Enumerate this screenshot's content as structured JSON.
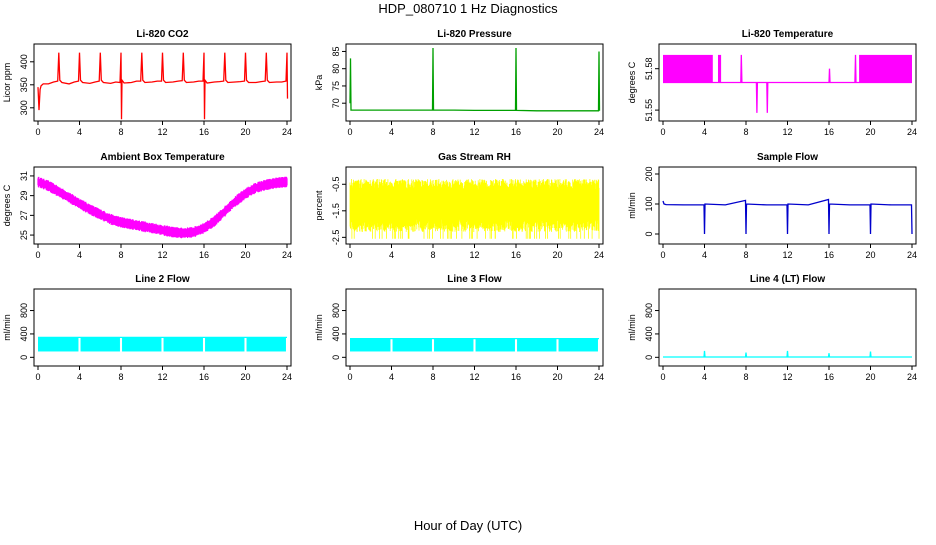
{
  "page": {
    "title": "HDP_080710  1 Hz Diagnostics",
    "x_caption": "Hour of Day (UTC)"
  },
  "chart_data": [
    {
      "type": "line",
      "title": "Li-820 CO2",
      "ylabel": "Licor ppm",
      "color": "#ff0000",
      "xlim": [
        0,
        24
      ],
      "ylim": [
        280,
        430
      ],
      "xticks": [
        0,
        4,
        8,
        12,
        16,
        20,
        24
      ],
      "yticks": [
        300,
        350,
        400
      ],
      "grid": false,
      "series": [
        {
          "x": [
            0.0,
            0.1,
            0.2,
            0.3,
            0.5,
            1.0,
            1.5,
            1.9,
            2.0,
            2.1,
            2.3,
            3.0,
            3.5,
            3.9,
            4.0,
            4.1,
            4.3,
            5.0,
            5.5,
            5.9,
            6.0,
            6.1,
            6.3,
            7.0,
            7.5,
            7.9,
            8.0,
            8.05,
            8.1,
            8.3,
            9.0,
            9.5,
            9.9,
            10.0,
            10.1,
            10.3,
            11.0,
            11.5,
            11.9,
            12.0,
            12.1,
            12.3,
            13.0,
            13.5,
            13.9,
            14.0,
            14.1,
            14.3,
            15.0,
            15.5,
            15.9,
            16.0,
            16.05,
            16.1,
            16.3,
            17.0,
            17.5,
            17.9,
            18.0,
            18.1,
            18.3,
            19.0,
            19.5,
            19.9,
            20.0,
            20.1,
            20.3,
            21.0,
            21.5,
            21.9,
            22.0,
            22.1,
            22.3,
            23.0,
            23.5,
            23.9,
            24.0,
            24.05
          ],
          "y": [
            345,
            295,
            340,
            348,
            352,
            352,
            356,
            358,
            420,
            360,
            355,
            352,
            356,
            358,
            420,
            360,
            355,
            353,
            356,
            358,
            420,
            360,
            355,
            353,
            356,
            355,
            420,
            275,
            360,
            354,
            355,
            358,
            358,
            420,
            360,
            355,
            356,
            358,
            358,
            420,
            360,
            355,
            356,
            358,
            359,
            420,
            360,
            355,
            356,
            358,
            358,
            420,
            275,
            360,
            354,
            356,
            357,
            358,
            420,
            360,
            355,
            356,
            357,
            358,
            420,
            360,
            355,
            355,
            357,
            358,
            420,
            360,
            355,
            356,
            356,
            358,
            420,
            320
          ]
        }
      ]
    },
    {
      "type": "line",
      "title": "Li-820 Pressure",
      "ylabel": "kPa",
      "color": "#00a000",
      "xlim": [
        0,
        24
      ],
      "ylim": [
        66,
        86
      ],
      "xticks": [
        0,
        4,
        8,
        12,
        16,
        20,
        24
      ],
      "yticks": [
        70,
        75,
        80,
        85
      ],
      "grid": false,
      "series": [
        {
          "x": [
            0.0,
            0.05,
            0.1,
            0.2,
            2,
            4,
            6,
            7.95,
            8.0,
            8.05,
            10,
            12,
            14,
            15.95,
            16.0,
            16.05,
            18,
            20,
            22,
            23.95,
            24.0,
            24.05
          ],
          "y": [
            70,
            83,
            68,
            68,
            68,
            68,
            68,
            68,
            86,
            68,
            68,
            67.9,
            67.9,
            67.9,
            86,
            67.9,
            67.8,
            67.8,
            67.8,
            67.8,
            85,
            67.8
          ]
        }
      ]
    },
    {
      "type": "line",
      "title": "Li-820 Temperature",
      "ylabel": "degrees C",
      "color": "#ff00ff",
      "xlim": [
        0,
        24
      ],
      "ylim": [
        51.545,
        51.595
      ],
      "xticks": [
        0,
        4,
        8,
        12,
        16,
        20,
        24
      ],
      "yticks": [
        51.55,
        51.58
      ],
      "ytick_labels": [
        "51.55",
        "51.58"
      ],
      "grid": false,
      "band_ranges": [
        [
          0,
          4.8
        ],
        [
          5.3,
          5.6
        ],
        [
          18.9,
          24
        ]
      ],
      "band_level": [
        51.57,
        51.59
      ],
      "series": [
        {
          "x": [
            0.0,
            4.8,
            5.0,
            5.3,
            5.6,
            7.5,
            7.55,
            7.6,
            9.0,
            9.05,
            9.1,
            10.0,
            10.05,
            10.1,
            16.0,
            16.05,
            16.1,
            18.5,
            18.55,
            18.6,
            24.0
          ],
          "y": [
            51.57,
            51.57,
            51.57,
            51.57,
            51.57,
            51.57,
            51.59,
            51.57,
            51.57,
            51.548,
            51.57,
            51.57,
            51.548,
            51.57,
            51.57,
            51.58,
            51.57,
            51.57,
            51.59,
            51.57,
            51.57
          ]
        }
      ]
    },
    {
      "type": "line",
      "title": "Ambient Box Temperature",
      "ylabel": "degrees C",
      "color": "#ff00ff",
      "xlim": [
        0,
        24
      ],
      "ylim": [
        24.5,
        31.5
      ],
      "xticks": [
        0,
        4,
        8,
        12,
        16,
        20,
        24
      ],
      "yticks": [
        25,
        27,
        29,
        31
      ],
      "grid": false,
      "band_half_width": 0.55,
      "series": [
        {
          "x": [
            0,
            1,
            2,
            3,
            4,
            5,
            6,
            7,
            8,
            9,
            10,
            11,
            12,
            13,
            14,
            15,
            16,
            17,
            18,
            19,
            20,
            21,
            22,
            23,
            24
          ],
          "y": [
            30.4,
            30.0,
            29.4,
            28.8,
            28.2,
            27.6,
            27.1,
            26.6,
            26.3,
            26.1,
            25.9,
            25.7,
            25.5,
            25.3,
            25.2,
            25.3,
            25.7,
            26.4,
            27.4,
            28.4,
            29.2,
            29.8,
            30.1,
            30.3,
            30.4
          ]
        }
      ]
    },
    {
      "type": "line",
      "title": "Gas Stream RH",
      "ylabel": "percent",
      "color": "#ffff00",
      "xlim": [
        0,
        24
      ],
      "ylim": [
        -2.6,
        0.0
      ],
      "xticks": [
        0,
        4,
        8,
        12,
        16,
        20,
        24
      ],
      "yticks": [
        -2.5,
        -1.5,
        -0.5
      ],
      "grid": false,
      "noise_range": [
        -2.3,
        -0.3
      ],
      "series": [
        {
          "x": [
            0,
            24
          ],
          "y": [
            -1.3,
            -1.1
          ]
        }
      ]
    },
    {
      "type": "line",
      "title": "Sample Flow",
      "ylabel": "ml/min",
      "color": "#0000cc",
      "xlim": [
        0,
        24
      ],
      "ylim": [
        -20,
        210
      ],
      "xticks": [
        0,
        4,
        8,
        12,
        16,
        20,
        24
      ],
      "yticks": [
        0,
        100,
        200
      ],
      "grid": false,
      "series": [
        {
          "x": [
            0.0,
            0.1,
            0.3,
            2,
            3.95,
            4.0,
            4.05,
            6,
            7.95,
            8.0,
            8.05,
            10,
            11.95,
            12.0,
            12.05,
            14,
            15.95,
            16.0,
            16.05,
            18,
            19.95,
            20.0,
            20.05,
            22,
            23.95,
            24.0
          ],
          "y": [
            110,
            100,
            98,
            97,
            97,
            0,
            100,
            97,
            112,
            0,
            100,
            97,
            97,
            0,
            100,
            97,
            115,
            0,
            100,
            97,
            97,
            0,
            100,
            97,
            97,
            0
          ]
        }
      ]
    },
    {
      "type": "area",
      "title": "Line 2 Flow",
      "ylabel": "ml/min",
      "color": "#00ffff",
      "xlim": [
        0,
        24
      ],
      "ylim": [
        -80,
        1100
      ],
      "xticks": [
        0,
        4,
        8,
        12,
        16,
        20,
        24
      ],
      "yticks": [
        0,
        400,
        800
      ],
      "grid": false,
      "band_ranges": [
        [
          0,
          3.9
        ],
        [
          4.1,
          7.9
        ],
        [
          8.1,
          11.9
        ],
        [
          12.1,
          15.9
        ],
        [
          16.1,
          19.9
        ],
        [
          20.1,
          23.9
        ]
      ],
      "band_level": [
        100,
        340
      ],
      "series": [
        {
          "x": [
            0,
            24
          ],
          "y": [
            340,
            340
          ]
        }
      ]
    },
    {
      "type": "area",
      "title": "Line 3 Flow",
      "ylabel": "ml/min",
      "color": "#00ffff",
      "xlim": [
        0,
        24
      ],
      "ylim": [
        -80,
        1100
      ],
      "xticks": [
        0,
        4,
        8,
        12,
        16,
        20,
        24
      ],
      "yticks": [
        0,
        400,
        800
      ],
      "grid": false,
      "band_ranges": [
        [
          0,
          3.9
        ],
        [
          4.1,
          7.9
        ],
        [
          8.1,
          11.9
        ],
        [
          12.1,
          15.9
        ],
        [
          16.1,
          19.9
        ],
        [
          20.1,
          23.9
        ]
      ],
      "band_level": [
        100,
        320
      ],
      "series": [
        {
          "x": [
            0,
            24
          ],
          "y": [
            320,
            320
          ]
        }
      ]
    },
    {
      "type": "line",
      "title": "Line 4 (LT) Flow",
      "ylabel": "ml/min",
      "color": "#00ffff",
      "xlim": [
        0,
        24
      ],
      "ylim": [
        -80,
        1100
      ],
      "xticks": [
        0,
        4,
        8,
        12,
        16,
        20,
        24
      ],
      "yticks": [
        0,
        400,
        800
      ],
      "grid": false,
      "series": [
        {
          "x": [
            0,
            3.95,
            4.0,
            4.05,
            7.95,
            8.0,
            8.05,
            11.95,
            12.0,
            12.05,
            15.95,
            16.0,
            16.05,
            19.95,
            20.0,
            20.05,
            24
          ],
          "y": [
            5,
            5,
            110,
            5,
            5,
            80,
            5,
            5,
            110,
            5,
            5,
            70,
            5,
            5,
            100,
            5,
            5
          ]
        }
      ]
    }
  ]
}
